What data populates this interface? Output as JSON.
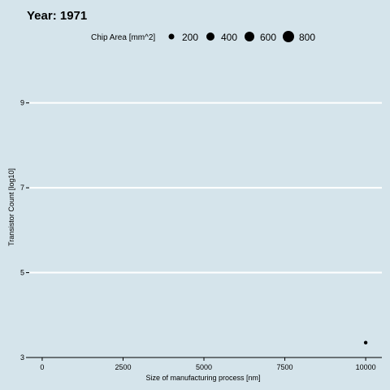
{
  "chart_data": {
    "type": "scatter",
    "title": "Year: 1971",
    "xlabel": "Size of manufacturing process [nm]",
    "ylabel": "Transistor Count [log10]",
    "xlim": [
      -400,
      10500
    ],
    "ylim": [
      3,
      10.2
    ],
    "x_ticks": [
      0,
      2500,
      5000,
      7500,
      10000
    ],
    "y_ticks": [
      3,
      5,
      7,
      9
    ],
    "grid": "horizontal",
    "legend": {
      "title": "Chip Area [mm^2]",
      "placement": "top",
      "sizes": [
        200,
        400,
        600,
        800
      ],
      "labels": [
        "200",
        "400",
        "600",
        "800"
      ]
    },
    "points": [
      {
        "x": 10000,
        "y": 3.35,
        "size": 12
      }
    ],
    "colors": {
      "background": "#d5e4eb",
      "grid": "#ffffff",
      "point": "#000000"
    }
  }
}
